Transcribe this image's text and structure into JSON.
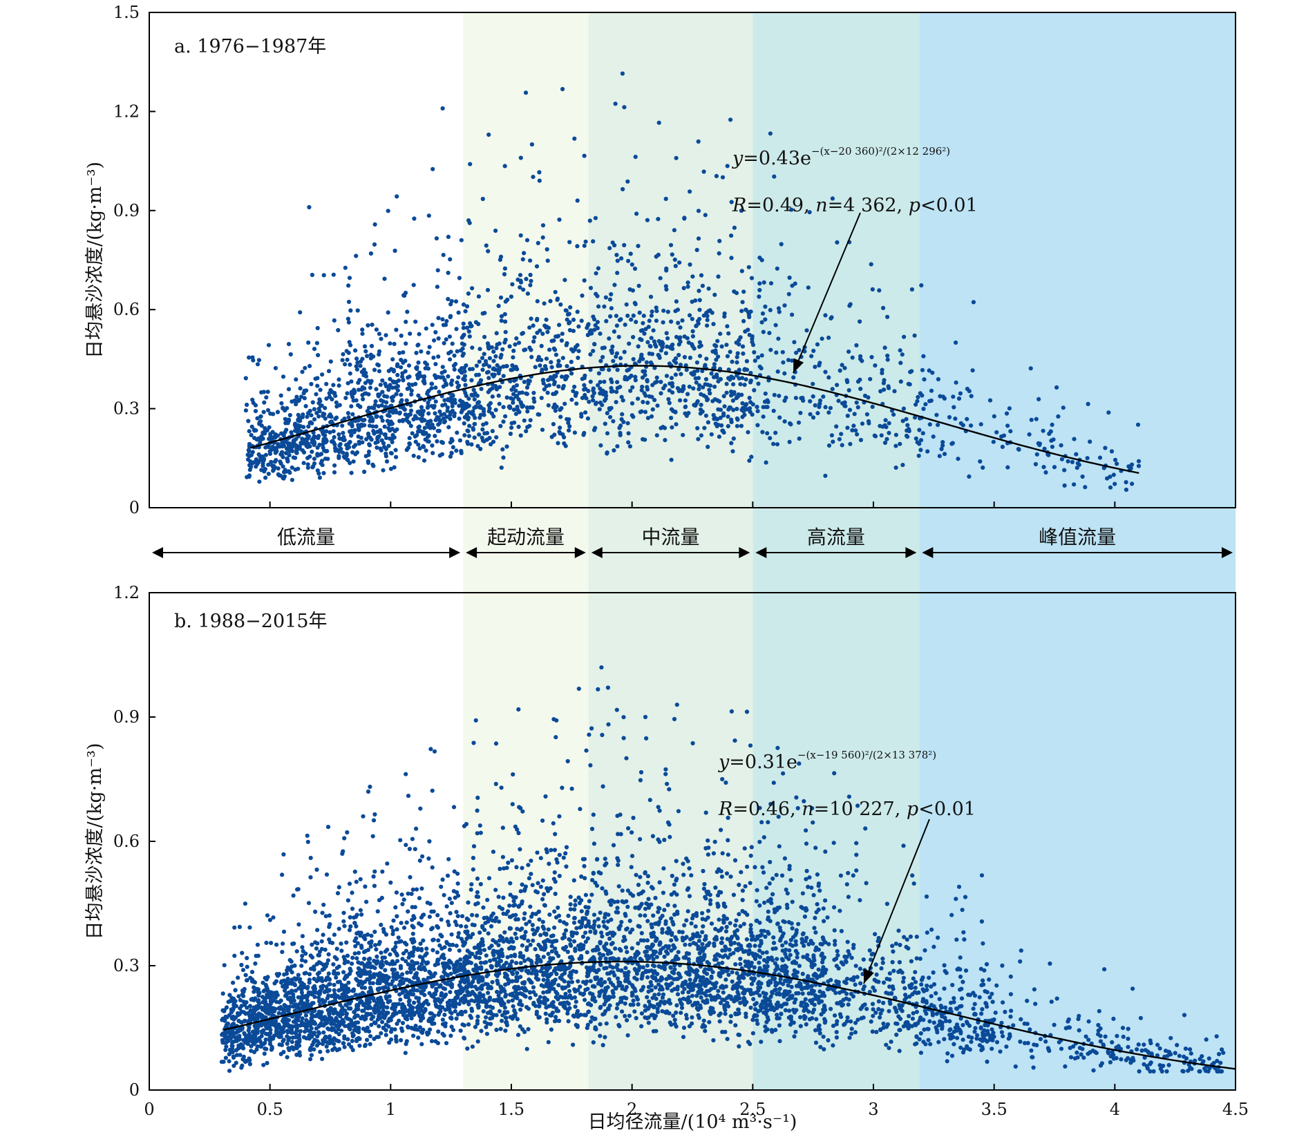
{
  "xlabel": "日均径流量/(10⁴ m³·s⁻¹)",
  "regions": [
    {
      "label": "低流量",
      "from": 0,
      "to": 1.3,
      "color": "#ffffff"
    },
    {
      "label": "起动流量",
      "from": 1.3,
      "to": 1.82,
      "color": "#f4f9ee"
    },
    {
      "label": "中流量",
      "from": 1.82,
      "to": 2.5,
      "color": "#e3f1e8"
    },
    {
      "label": "高流量",
      "from": 2.5,
      "to": 3.19,
      "color": "#cdeaea"
    },
    {
      "label": "峰值流量",
      "from": 3.19,
      "to": 4.5,
      "color": "#bde3f5"
    }
  ],
  "colors": {
    "points": "#0a4a98",
    "fit": "#000000",
    "axes": "#000000"
  },
  "chart_data": [
    {
      "type": "scatter",
      "panel_label": "a. 1976−1987年",
      "ylabel": "日均悬沙浓度/(kg·m⁻³)",
      "xlim": [
        0,
        4.5
      ],
      "ylim": [
        0,
        1.5
      ],
      "xticks": [
        "0.5",
        "1",
        "1.5",
        "2",
        "2.5",
        "3",
        "3.5",
        "4"
      ],
      "yticks": [
        "0",
        "0.3",
        "0.6",
        "0.9",
        "1.2",
        "1.5"
      ],
      "x_range_points": [
        0.4,
        4.1
      ],
      "fit": {
        "formula": "y=0.43e−(x−20 360)²/(2×12 296²)",
        "a": 0.43,
        "mu": 2.036,
        "sigma": 1.2296,
        "x_range": [
          0.42,
          4.1
        ],
        "eq_y_prefix": "y",
        "eq_main": "=0.43e",
        "eq_exponent": "−(x−20 360)²/(2×12 296²)",
        "stats": "R=0.49, n=4 362, p<0.01",
        "stats_parts": [
          "R",
          "=0.49, ",
          "n",
          "=4 362, ",
          "p",
          "<0.01"
        ]
      },
      "n_points": 4362,
      "grid": false
    },
    {
      "type": "scatter",
      "panel_label": "b. 1988−2015年",
      "ylabel": "日均悬沙浓度/(kg·m⁻³)",
      "xlim": [
        0,
        4.5
      ],
      "ylim": [
        0,
        1.2
      ],
      "xticks": [
        "0",
        "0.5",
        "1",
        "1.5",
        "2",
        "2.5",
        "3",
        "3.5",
        "4",
        "4.5"
      ],
      "yticks": [
        "0",
        "0.3",
        "0.6",
        "0.9",
        "1.2"
      ],
      "x_range_points": [
        0.3,
        4.45
      ],
      "fit": {
        "formula": "y=0.31e−(x−19 560)²/(2×13 378²)",
        "a": 0.31,
        "mu": 1.956,
        "sigma": 1.3378,
        "x_range": [
          0.31,
          4.5
        ],
        "eq_y_prefix": "y",
        "eq_main": "=0.31e",
        "eq_exponent": "−(x−19 560)²/(2×13 378²)",
        "stats": "R=0.46, n=10 227, p<0.01",
        "stats_parts": [
          "R",
          "=0.46, ",
          "n",
          "=10 227, ",
          "p",
          "<0.01"
        ]
      },
      "n_points": 10227,
      "grid": false
    }
  ]
}
